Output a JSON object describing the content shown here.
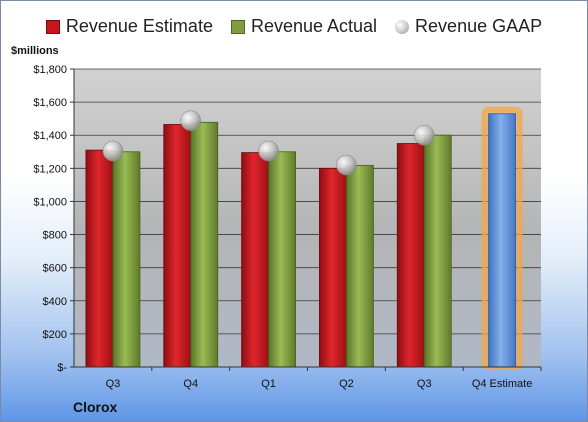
{
  "legend": {
    "estimate": "Revenue Estimate",
    "actual": "Revenue Actual",
    "gaap": "Revenue GAAP"
  },
  "ylabel": "$millions",
  "company": "Clorox",
  "colors": {
    "estimate": "#c8141b",
    "actual": "#7f9d3f",
    "gaap": "#b8b8b8",
    "forecast": "#5b8fd6",
    "forecast_glow": "#f5a742"
  },
  "chart_data": {
    "type": "bar",
    "categories": [
      "Q3",
      "Q4",
      "Q1",
      "Q2",
      "Q3",
      "Q4 Estimate"
    ],
    "series": [
      {
        "name": "Revenue Estimate",
        "values": [
          1310,
          1465,
          1295,
          1200,
          1350,
          null
        ]
      },
      {
        "name": "Revenue Actual",
        "values": [
          1300,
          1478,
          1300,
          1218,
          1400,
          1530
        ]
      },
      {
        "name": "Revenue GAAP",
        "values": [
          1305,
          1488,
          1305,
          1220,
          1400,
          null
        ]
      }
    ],
    "ylabel": "$millions",
    "ylim": [
      0,
      1800
    ],
    "yticks": [
      0,
      200,
      400,
      600,
      800,
      1000,
      1200,
      1400,
      1600,
      1800
    ],
    "ytick_labels": [
      "$-",
      "$200",
      "$400",
      "$600",
      "$800",
      "$1,000",
      "$1,200",
      "$1,400",
      "$1,600",
      "$1,800"
    ],
    "grid": true,
    "legend_position": "top"
  }
}
